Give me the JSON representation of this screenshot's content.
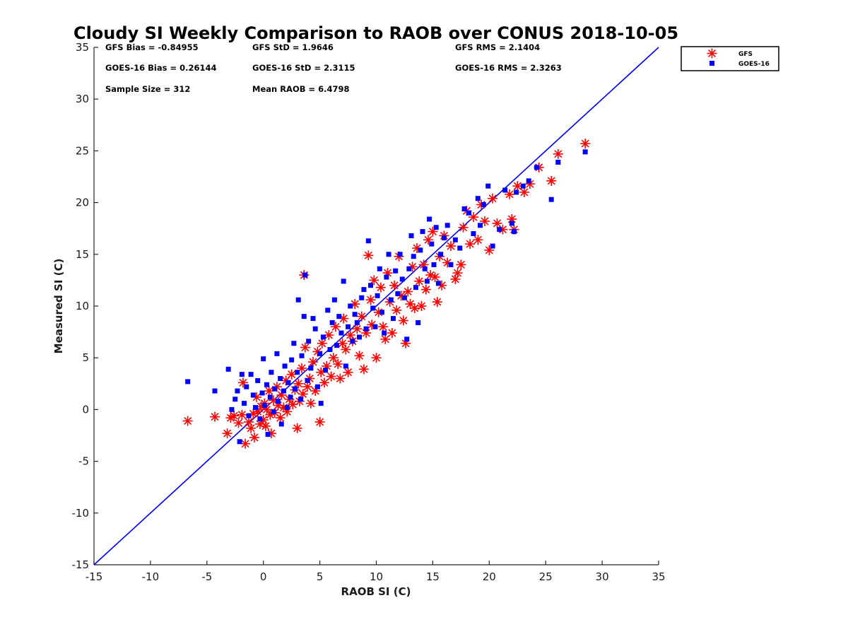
{
  "chart_data": {
    "type": "scatter",
    "title": "Cloudy SI Weekly Comparison to RAOB over CONUS 2018-10-05",
    "xlabel": "RAOB SI (C)",
    "ylabel": "Measured SI (C)",
    "xlim": [
      -15,
      35
    ],
    "ylim": [
      -15,
      35
    ],
    "xticks": [
      "-15",
      "-10",
      "-5",
      "0",
      "5",
      "10",
      "15",
      "20",
      "25",
      "30",
      "35"
    ],
    "yticks": [
      "-15",
      "-10",
      "-5",
      "0",
      "5",
      "10",
      "15",
      "20",
      "25",
      "30",
      "35"
    ],
    "reference_line": {
      "x": [
        -15,
        35
      ],
      "y": [
        -15,
        35
      ],
      "color": "#0000ff"
    },
    "legend_position": "outside top-right",
    "stats": [
      {
        "text": "GFS Bias = -0.84955"
      },
      {
        "text": "GFS StD = 1.9646"
      },
      {
        "text": "GFS RMS = 2.1404"
      },
      {
        "text": "GOES-16 Bias = 0.26144"
      },
      {
        "text": "GOES-16 StD = 2.3115"
      },
      {
        "text": "GOES-16 RMS = 2.3263"
      },
      {
        "text": "Sample Size = 312"
      },
      {
        "text": "Mean RAOB = 6.4798"
      }
    ],
    "series": [
      {
        "name": "GFS",
        "marker": "asterisk",
        "color": "#ff0000",
        "points": [
          [
            -6.7,
            -1.1
          ],
          [
            -4.3,
            -0.7
          ],
          [
            -3.2,
            -2.3
          ],
          [
            -2.9,
            -0.8
          ],
          [
            -2.6,
            -0.6
          ],
          [
            -2.2,
            -1.3
          ],
          [
            -1.9,
            -0.5
          ],
          [
            -1.8,
            2.6
          ],
          [
            -1.6,
            -3.3
          ],
          [
            -1.3,
            -1.2
          ],
          [
            -1.1,
            -1.8
          ],
          [
            -0.9,
            -0.4
          ],
          [
            -0.8,
            -2.7
          ],
          [
            -0.6,
            1.2
          ],
          [
            -0.5,
            -0.2
          ],
          [
            -0.3,
            -1.4
          ],
          [
            -0.2,
            0.3
          ],
          [
            0.0,
            -1.0
          ],
          [
            0.1,
            0.6
          ],
          [
            0.2,
            -1.6
          ],
          [
            0.3,
            0.0
          ],
          [
            0.5,
            1.8
          ],
          [
            0.6,
            -0.5
          ],
          [
            0.7,
            -2.3
          ],
          [
            0.9,
            0.9
          ],
          [
            1.0,
            -0.3
          ],
          [
            1.2,
            2.2
          ],
          [
            1.3,
            0.4
          ],
          [
            1.5,
            -0.8
          ],
          [
            1.6,
            1.4
          ],
          [
            1.8,
            0.2
          ],
          [
            2.0,
            2.8
          ],
          [
            2.1,
            -0.2
          ],
          [
            2.3,
            1.0
          ],
          [
            2.5,
            3.4
          ],
          [
            2.6,
            0.5
          ],
          [
            2.8,
            1.9
          ],
          [
            3.0,
            -1.8
          ],
          [
            3.1,
            2.5
          ],
          [
            3.2,
            0.8
          ],
          [
            3.4,
            4.0
          ],
          [
            3.5,
            1.5
          ],
          [
            3.6,
            13.0
          ],
          [
            3.7,
            6.0
          ],
          [
            3.9,
            2.2
          ],
          [
            4.1,
            3.0
          ],
          [
            4.2,
            0.6
          ],
          [
            4.4,
            4.6
          ],
          [
            4.6,
            1.8
          ],
          [
            4.8,
            5.6
          ],
          [
            5.0,
            -1.2
          ],
          [
            5.1,
            3.6
          ],
          [
            5.2,
            6.4
          ],
          [
            5.4,
            2.6
          ],
          [
            5.6,
            4.2
          ],
          [
            5.8,
            7.2
          ],
          [
            6.0,
            3.2
          ],
          [
            6.2,
            5.0
          ],
          [
            6.4,
            8.0
          ],
          [
            6.6,
            4.4
          ],
          [
            6.8,
            3.0
          ],
          [
            7.0,
            6.4
          ],
          [
            7.1,
            8.8
          ],
          [
            7.3,
            5.8
          ],
          [
            7.5,
            3.6
          ],
          [
            7.7,
            7.2
          ],
          [
            7.9,
            6.6
          ],
          [
            8.1,
            10.2
          ],
          [
            8.3,
            7.8
          ],
          [
            8.5,
            5.2
          ],
          [
            8.7,
            9.0
          ],
          [
            8.9,
            3.9
          ],
          [
            9.1,
            7.4
          ],
          [
            9.3,
            14.9
          ],
          [
            9.5,
            10.6
          ],
          [
            9.6,
            8.2
          ],
          [
            9.8,
            12.5
          ],
          [
            10.0,
            5.0
          ],
          [
            10.2,
            9.4
          ],
          [
            10.4,
            11.8
          ],
          [
            10.6,
            8.0
          ],
          [
            10.8,
            6.8
          ],
          [
            11.0,
            13.2
          ],
          [
            11.2,
            10.4
          ],
          [
            11.4,
            7.4
          ],
          [
            11.6,
            12.0
          ],
          [
            11.8,
            9.6
          ],
          [
            12.0,
            14.8
          ],
          [
            12.2,
            11.0
          ],
          [
            12.4,
            8.6
          ],
          [
            12.6,
            6.4
          ],
          [
            12.8,
            11.4
          ],
          [
            13.0,
            10.2
          ],
          [
            13.2,
            13.8
          ],
          [
            13.4,
            9.8
          ],
          [
            13.6,
            15.6
          ],
          [
            13.8,
            12.4
          ],
          [
            14.0,
            10.0
          ],
          [
            14.2,
            14.0
          ],
          [
            14.4,
            11.6
          ],
          [
            14.6,
            16.4
          ],
          [
            14.8,
            13.0
          ],
          [
            15.0,
            17.2
          ],
          [
            15.2,
            12.8
          ],
          [
            15.4,
            10.4
          ],
          [
            15.6,
            14.8
          ],
          [
            15.8,
            12.0
          ],
          [
            16.0,
            16.8
          ],
          [
            16.3,
            14.2
          ],
          [
            16.6,
            15.8
          ],
          [
            17.0,
            12.6
          ],
          [
            17.2,
            13.2
          ],
          [
            17.5,
            14.0
          ],
          [
            17.7,
            17.6
          ],
          [
            18.0,
            19.2
          ],
          [
            18.3,
            16.0
          ],
          [
            18.6,
            18.6
          ],
          [
            19.0,
            16.4
          ],
          [
            19.3,
            19.8
          ],
          [
            19.6,
            18.2
          ],
          [
            20.0,
            15.4
          ],
          [
            20.3,
            20.4
          ],
          [
            20.7,
            18.0
          ],
          [
            21.2,
            17.4
          ],
          [
            21.8,
            20.8
          ],
          [
            22.0,
            18.4
          ],
          [
            22.2,
            17.4
          ],
          [
            22.5,
            21.6
          ],
          [
            23.1,
            21.0
          ],
          [
            23.6,
            21.8
          ],
          [
            24.4,
            23.4
          ],
          [
            25.5,
            22.1
          ],
          [
            26.1,
            24.7
          ],
          [
            28.5,
            25.7
          ]
        ]
      },
      {
        "name": "GOES-16",
        "marker": "square",
        "color": "#0000ff",
        "points": [
          [
            -6.7,
            2.7
          ],
          [
            -4.3,
            1.8
          ],
          [
            -3.1,
            3.9
          ],
          [
            -2.8,
            0.0
          ],
          [
            -2.5,
            1.0
          ],
          [
            -2.3,
            1.8
          ],
          [
            -2.1,
            -3.1
          ],
          [
            -1.9,
            3.4
          ],
          [
            -1.7,
            0.6
          ],
          [
            -1.5,
            2.2
          ],
          [
            -1.3,
            -0.6
          ],
          [
            -1.1,
            3.4
          ],
          [
            -0.9,
            1.4
          ],
          [
            -0.7,
            0.2
          ],
          [
            -0.5,
            2.8
          ],
          [
            -0.3,
            -0.9
          ],
          [
            -0.1,
            1.6
          ],
          [
            0.0,
            4.9
          ],
          [
            0.1,
            0.4
          ],
          [
            0.3,
            2.4
          ],
          [
            0.4,
            -2.4
          ],
          [
            0.6,
            1.2
          ],
          [
            0.7,
            3.6
          ],
          [
            0.9,
            -0.2
          ],
          [
            1.0,
            2.0
          ],
          [
            1.2,
            5.4
          ],
          [
            1.3,
            0.8
          ],
          [
            1.5,
            3.0
          ],
          [
            1.6,
            -1.4
          ],
          [
            1.8,
            1.8
          ],
          [
            1.9,
            4.2
          ],
          [
            2.1,
            0.2
          ],
          [
            2.2,
            2.6
          ],
          [
            2.4,
            1.2
          ],
          [
            2.5,
            4.8
          ],
          [
            2.7,
            6.4
          ],
          [
            2.8,
            2.0
          ],
          [
            3.0,
            3.6
          ],
          [
            3.1,
            10.6
          ],
          [
            3.3,
            1.0
          ],
          [
            3.4,
            5.2
          ],
          [
            3.6,
            9.0
          ],
          [
            3.7,
            13.0
          ],
          [
            3.9,
            2.8
          ],
          [
            4.0,
            6.6
          ],
          [
            4.2,
            4.0
          ],
          [
            4.4,
            8.8
          ],
          [
            4.6,
            7.8
          ],
          [
            4.8,
            2.2
          ],
          [
            5.0,
            5.4
          ],
          [
            5.1,
            0.6
          ],
          [
            5.3,
            7.0
          ],
          [
            5.5,
            3.8
          ],
          [
            5.7,
            9.6
          ],
          [
            5.9,
            5.8
          ],
          [
            6.1,
            8.4
          ],
          [
            6.3,
            10.6
          ],
          [
            6.5,
            6.2
          ],
          [
            6.7,
            9.0
          ],
          [
            6.9,
            7.4
          ],
          [
            7.1,
            12.4
          ],
          [
            7.3,
            4.2
          ],
          [
            7.5,
            8.0
          ],
          [
            7.7,
            10.0
          ],
          [
            7.9,
            6.6
          ],
          [
            8.1,
            9.2
          ],
          [
            8.3,
            8.4
          ],
          [
            8.5,
            7.0
          ],
          [
            8.7,
            10.8
          ],
          [
            8.9,
            11.6
          ],
          [
            9.1,
            7.8
          ],
          [
            9.3,
            16.3
          ],
          [
            9.5,
            12.0
          ],
          [
            9.7,
            9.8
          ],
          [
            9.9,
            8.0
          ],
          [
            10.1,
            11.0
          ],
          [
            10.3,
            13.6
          ],
          [
            10.5,
            9.4
          ],
          [
            10.7,
            7.4
          ],
          [
            10.9,
            12.8
          ],
          [
            11.1,
            15.0
          ],
          [
            11.3,
            10.6
          ],
          [
            11.5,
            8.8
          ],
          [
            11.7,
            13.4
          ],
          [
            11.9,
            11.2
          ],
          [
            12.1,
            15.0
          ],
          [
            12.3,
            12.6
          ],
          [
            12.5,
            10.8
          ],
          [
            12.7,
            6.8
          ],
          [
            12.9,
            13.6
          ],
          [
            13.1,
            16.8
          ],
          [
            13.3,
            14.8
          ],
          [
            13.5,
            11.8
          ],
          [
            13.7,
            8.4
          ],
          [
            13.9,
            15.4
          ],
          [
            14.1,
            17.2
          ],
          [
            14.3,
            13.6
          ],
          [
            14.5,
            12.4
          ],
          [
            14.7,
            18.4
          ],
          [
            14.9,
            16.0
          ],
          [
            15.1,
            14.0
          ],
          [
            15.3,
            17.6
          ],
          [
            15.5,
            12.2
          ],
          [
            15.7,
            15.0
          ],
          [
            16.0,
            16.6
          ],
          [
            16.3,
            17.8
          ],
          [
            16.6,
            14.0
          ],
          [
            17.0,
            16.4
          ],
          [
            17.4,
            15.6
          ],
          [
            17.8,
            19.4
          ],
          [
            18.2,
            19.0
          ],
          [
            18.6,
            17.0
          ],
          [
            19.0,
            20.4
          ],
          [
            19.2,
            17.8
          ],
          [
            19.5,
            19.8
          ],
          [
            19.9,
            21.6
          ],
          [
            20.3,
            15.8
          ],
          [
            20.9,
            17.4
          ],
          [
            21.4,
            21.2
          ],
          [
            22.0,
            18.0
          ],
          [
            22.2,
            17.2
          ],
          [
            22.4,
            21.0
          ],
          [
            23.0,
            21.6
          ],
          [
            23.5,
            22.1
          ],
          [
            24.2,
            23.4
          ],
          [
            25.5,
            20.3
          ],
          [
            26.1,
            23.9
          ],
          [
            28.5,
            24.9
          ]
        ]
      }
    ]
  }
}
